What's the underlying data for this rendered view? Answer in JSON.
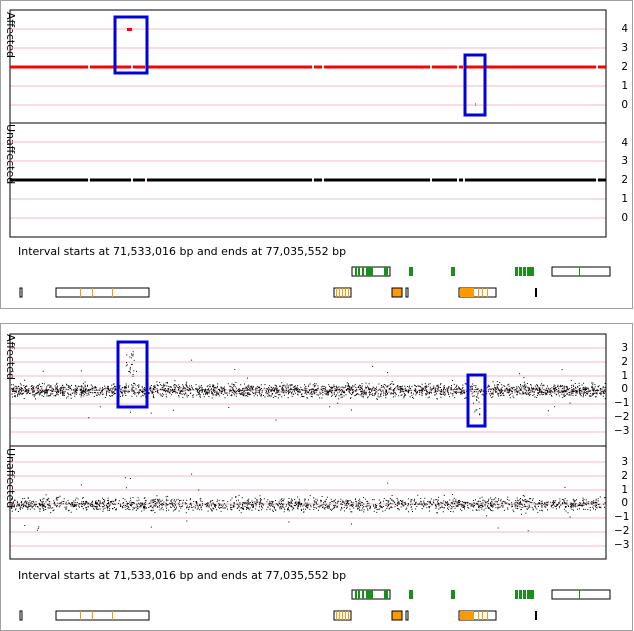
{
  "colors": {
    "grid": "#f2b8c6",
    "affected_line": "#ff0000",
    "unaffected_line": "#000000",
    "highlight_box": "#0000dd",
    "gene_green": "#1b8f1b",
    "gene_orange": "#ff9900"
  },
  "interval_text": "Interval starts at 71,533,016 bp and ends at 77,035,552 bp",
  "chart_data": [
    {
      "type": "line",
      "title": "",
      "tracks": [
        {
          "label": "Affected",
          "ticks": [
            "4",
            "3",
            "2",
            "1",
            "0"
          ],
          "ylim": [
            -0.5,
            4.5
          ],
          "value": 2,
          "outlier_value": 4,
          "gap_markers": [
            "0"
          ]
        },
        {
          "label": "Unaffected",
          "ticks": [
            "4",
            "3",
            "2",
            "1",
            "0"
          ],
          "ylim": [
            -0.5,
            4.5
          ],
          "value": 2
        }
      ],
      "grid": true,
      "highlighted_regions": 2
    },
    {
      "type": "scatter",
      "title": "",
      "tracks": [
        {
          "label": "Affected",
          "ticks": [
            "3",
            "2",
            "1",
            "0",
            "−1",
            "−2",
            "−3"
          ],
          "ylim": [
            -4,
            4
          ],
          "baseline": 0,
          "spike_max": 3,
          "dip_min": -2
        },
        {
          "label": "Unaffected",
          "ticks": [
            "3",
            "2",
            "1",
            "0",
            "−1",
            "−2",
            "−3"
          ],
          "ylim": [
            -4,
            4
          ],
          "baseline": 0
        }
      ],
      "grid": true,
      "highlighted_regions": 2
    }
  ]
}
